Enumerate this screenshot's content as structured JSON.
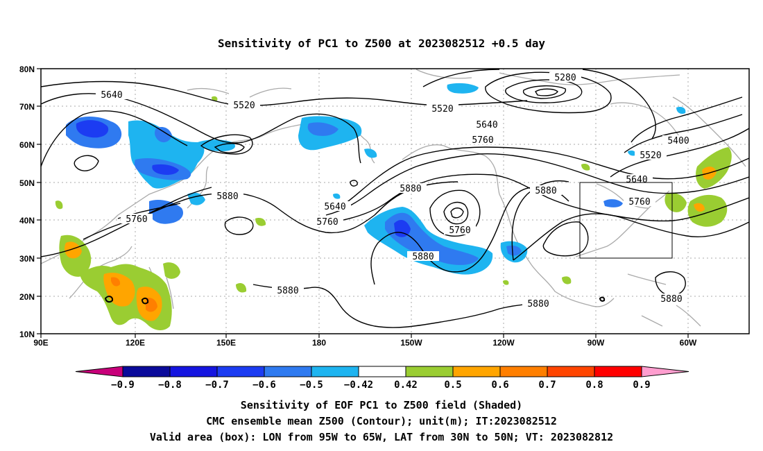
{
  "title": "Sensitivity of PC1 to Z500 at 2023082512 +0.5 day",
  "lat_labels": [
    "80N",
    "70N",
    "60N",
    "50N",
    "40N",
    "30N",
    "20N",
    "10N"
  ],
  "lon_labels": [
    "90E",
    "120E",
    "150E",
    "180",
    "150W",
    "120W",
    "90W",
    "60W"
  ],
  "contours": [
    {
      "label": "5280"
    },
    {
      "label": "5400"
    },
    {
      "label": "5520"
    },
    {
      "label": "5520"
    },
    {
      "label": "5520"
    },
    {
      "label": "5640"
    },
    {
      "label": "5640"
    },
    {
      "label": "5640"
    },
    {
      "label": "5640"
    },
    {
      "label": "5760"
    },
    {
      "label": "5760"
    },
    {
      "label": "5760"
    },
    {
      "label": "5760"
    },
    {
      "label": "5760"
    },
    {
      "label": "5880"
    },
    {
      "label": "5880"
    },
    {
      "label": "5880"
    },
    {
      "label": "5880"
    },
    {
      "label": "5880"
    },
    {
      "label": "5880"
    },
    {
      "label": "5880"
    }
  ],
  "colorbar": {
    "labels": [
      "-0.9",
      "-0.8",
      "-0.7",
      "-0.6",
      "-0.5",
      "-0.42",
      "0.42",
      "0.5",
      "0.6",
      "0.7",
      "0.8",
      "0.9"
    ],
    "colors": [
      "#c8007a",
      "#0a0a9a",
      "#1515e0",
      "#1c3cf2",
      "#2f7af0",
      "#1eb4f0",
      "#ffffff",
      "#9acd32",
      "#ffa500",
      "#ff7f00",
      "#ff4500",
      "#ff0000",
      "#ff9ecf"
    ]
  },
  "captions": [
    "Sensitivity of EOF PC1 to Z500 field (Shaded)",
    "CMC ensemble mean Z500 (Contour); unit(m); IT:2023082512",
    "Valid area (box): LON from 95W to 65W, LAT from 30N to 50N; VT: 2023082812"
  ]
}
